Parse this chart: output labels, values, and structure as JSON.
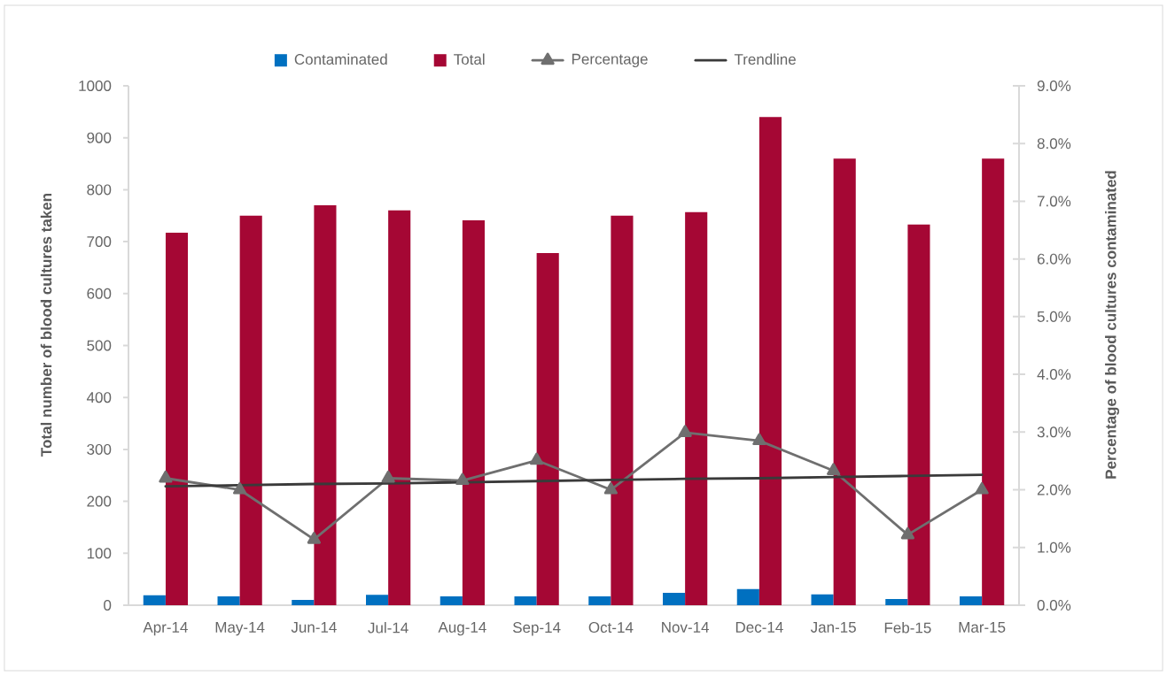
{
  "chart_data": {
    "type": "bar",
    "categories": [
      "Apr-14",
      "May-14",
      "Jun-14",
      "Jul-14",
      "Aug-14",
      "Sep-14",
      "Oct-14",
      "Nov-14",
      "Dec-14",
      "Jan-15",
      "Feb-15",
      "Mar-15"
    ],
    "ylabel": "Total number of blood cultures taken",
    "y2label": "Percentage of blood cultures contaminated",
    "ylim": [
      0,
      1000
    ],
    "yticks": [
      0,
      100,
      200,
      300,
      400,
      500,
      600,
      700,
      800,
      900,
      1000
    ],
    "y2lim": [
      0,
      9
    ],
    "y2ticks": [
      {
        "value": 0,
        "label": "0.0%"
      },
      {
        "value": 1,
        "label": "1.0%"
      },
      {
        "value": 2,
        "label": "2.0%"
      },
      {
        "value": 3,
        "label": "3.0%"
      },
      {
        "value": 4,
        "label": "4.0%"
      },
      {
        "value": 5,
        "label": "5.0%"
      },
      {
        "value": 6,
        "label": "6.0%"
      },
      {
        "value": 7,
        "label": "7.0%"
      },
      {
        "value": 8,
        "label": "8.0%"
      },
      {
        "value": 9,
        "label": "9.0%"
      }
    ],
    "legend": "top",
    "series": [
      {
        "name": "Contaminated",
        "color": "#0070c0",
        "values": [
          19,
          17,
          10,
          20,
          17,
          17,
          17,
          24,
          31,
          21,
          12,
          17
        ]
      },
      {
        "name": "Total",
        "color": "#a50734",
        "values": [
          717,
          750,
          770,
          760,
          741,
          678,
          750,
          757,
          940,
          860,
          733,
          860
        ]
      },
      {
        "name": "Percentage",
        "type": "line",
        "axis": "y2",
        "color": "#6f6f6f",
        "marker": "triangle",
        "values": [
          2.2,
          2.0,
          1.14,
          2.2,
          2.16,
          2.51,
          2.0,
          2.99,
          2.85,
          2.33,
          1.22,
          2.0
        ]
      },
      {
        "name": "Trendline",
        "type": "line",
        "axis": "y2",
        "color": "#3a3a3a",
        "values": [
          2.06,
          2.08,
          2.1,
          2.11,
          2.13,
          2.15,
          2.17,
          2.19,
          2.2,
          2.22,
          2.24,
          2.26
        ]
      }
    ]
  }
}
